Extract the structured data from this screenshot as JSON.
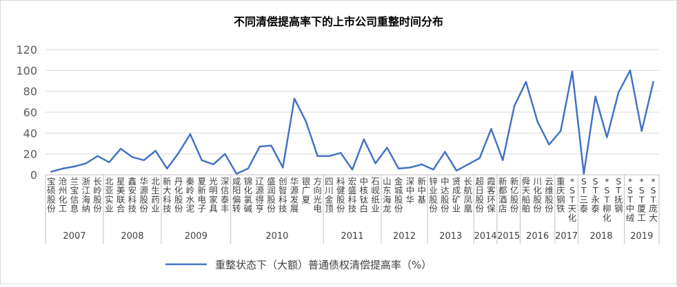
{
  "chart_data": {
    "type": "line",
    "title": "不同清偿提高率下的上市公司重整时间分布",
    "xlabel": "",
    "ylabel": "",
    "ylim": [
      0,
      120
    ],
    "yticks": [
      0,
      20,
      40,
      60,
      80,
      100,
      120
    ],
    "grid": true,
    "legend_position": "bottom",
    "series": [
      {
        "name": "重整状态下（大额）普通债权清偿提高率（%）",
        "color": "#4472c4",
        "values": [
          3,
          6,
          8,
          11,
          18,
          12,
          25,
          17,
          14,
          23,
          6,
          21,
          39,
          14,
          10,
          20,
          1,
          6,
          27,
          28,
          7,
          73,
          51,
          18,
          18,
          21,
          5,
          34,
          11,
          26,
          6,
          7,
          10,
          5,
          22,
          4,
          10,
          16,
          44,
          14,
          66,
          89,
          51,
          29,
          42,
          99,
          1,
          75,
          36,
          79,
          100,
          42,
          89
        ]
      }
    ],
    "categories": [
      "宝硕股份",
      "沧州化工",
      "兰宝信息",
      "浙江海纳",
      "长岭股份",
      "北亚实业",
      "星美联合",
      "鑫安科技",
      "华源股份",
      "北生药业",
      "新大科技",
      "丹化股份",
      "秦岭水泥",
      "夏新电子",
      "光明家具",
      "深信泰丰",
      "咸阳偏转",
      "锦化氯碱",
      "辽源得亨",
      "盛润股份",
      "创智科技",
      "华源发展",
      "银广夏",
      "方向光电",
      "四川金顶",
      "科健股份",
      "宏盛科技",
      "中核钛白",
      "石岘纸业",
      "山东海龙",
      "金城股份",
      "深中华",
      "新中基",
      "锌业股份",
      "中达股份",
      "贤成矿业",
      "长航凤凰",
      "超日股份",
      "霞客环保",
      "新都酒店",
      "新亿股份",
      "舜天船舶",
      "川化股份",
      "云维股份",
      "重庆钢铁",
      "*ST天化",
      "ST三泰",
      "ST永泰",
      "*ST柳化",
      "ST抚钢",
      "*ST中绒",
      "*ST厦工",
      "*ST庞大"
    ],
    "year_groups": [
      {
        "label": "2007",
        "count": 5
      },
      {
        "label": "2008",
        "count": 5
      },
      {
        "label": "2009",
        "count": 6
      },
      {
        "label": "2010",
        "count": 8
      },
      {
        "label": "2011",
        "count": 5
      },
      {
        "label": "2012",
        "count": 4
      },
      {
        "label": "2013",
        "count": 4
      },
      {
        "label": "2014",
        "count": 2
      },
      {
        "label": "2015",
        "count": 2
      },
      {
        "label": "2016",
        "count": 3
      },
      {
        "label": "2017",
        "count": 2
      },
      {
        "label": "2018",
        "count": 4
      },
      {
        "label": "2019",
        "count": 3
      }
    ]
  }
}
